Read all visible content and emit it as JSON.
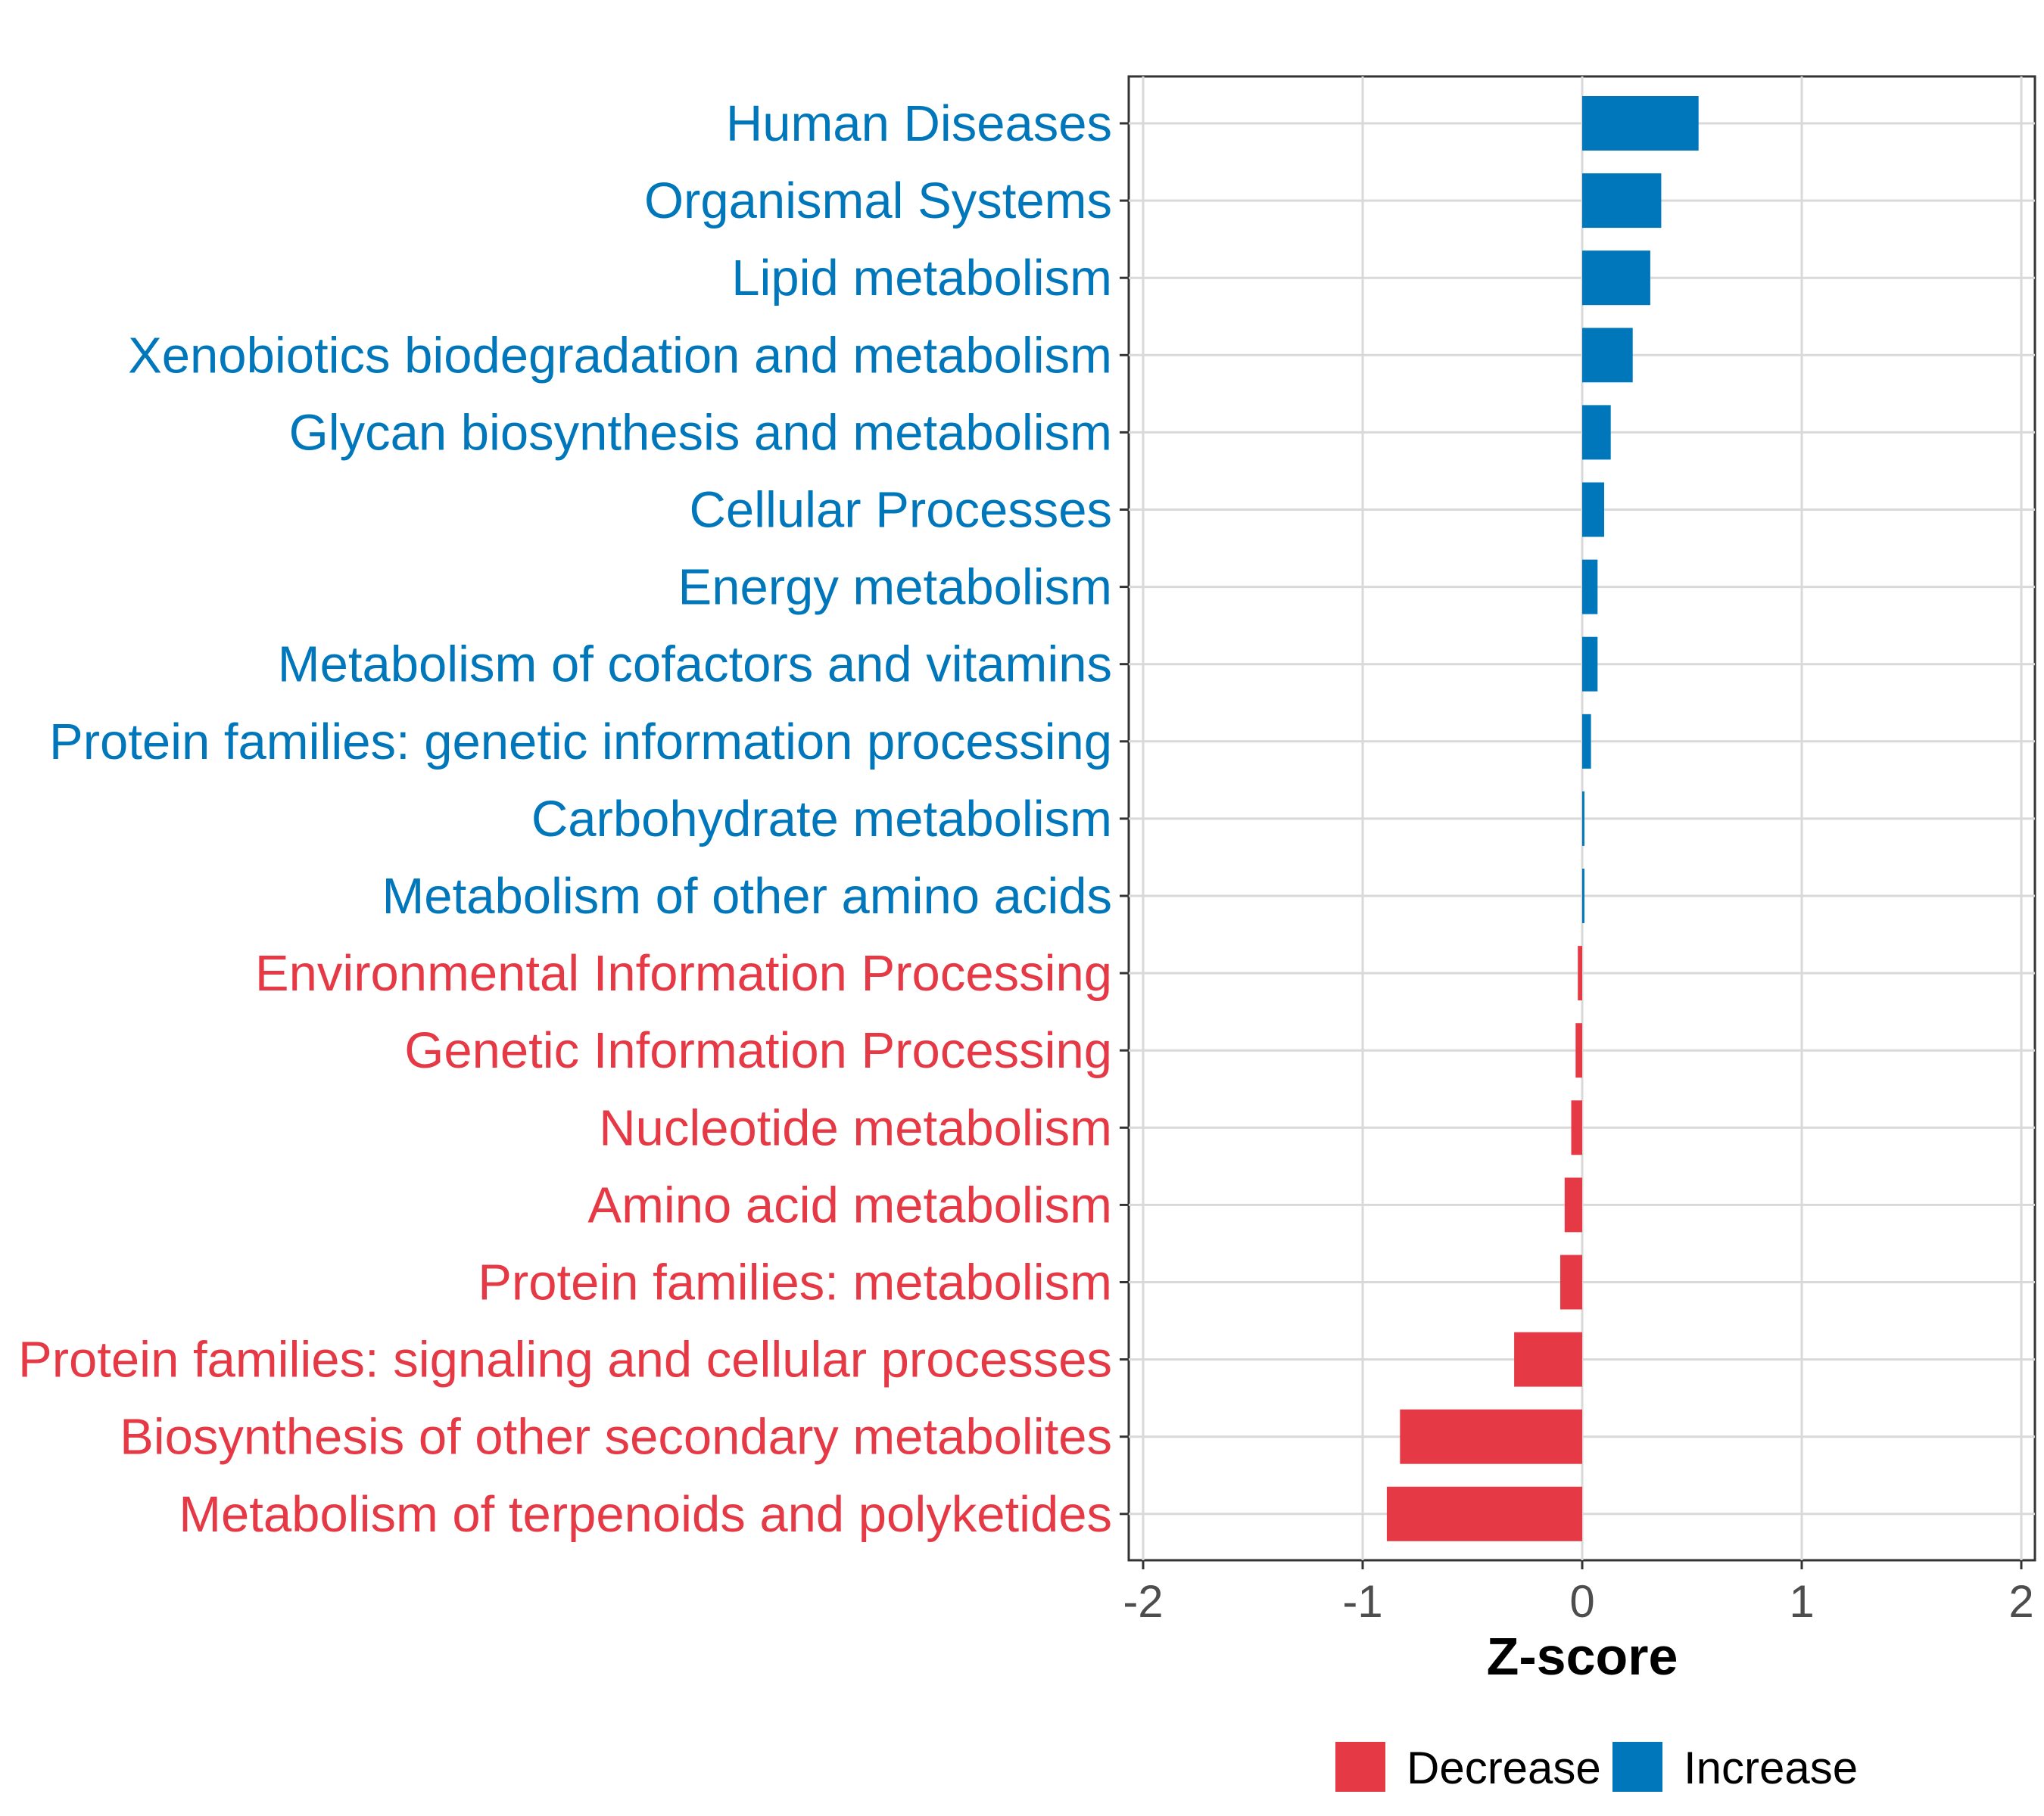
{
  "chart_data": {
    "type": "bar",
    "orientation": "horizontal",
    "categories": [
      "Human Diseases",
      "Organismal Systems",
      "Lipid metabolism",
      "Xenobiotics biodegradation and metabolism",
      "Glycan biosynthesis and metabolism",
      "Cellular Processes",
      "Energy metabolism",
      "Metabolism of cofactors and vitamins",
      "Protein families: genetic information processing",
      "Carbohydrate metabolism",
      "Metabolism of other amino acids",
      "Environmental Information Processing",
      "Genetic Information Processing",
      "Nucleotide metabolism",
      "Amino acid metabolism",
      "Protein families: metabolism",
      "Protein families: signaling and cellular processes",
      "Biosynthesis of other secondary metabolites",
      "Metabolism of terpenoids and polyketides"
    ],
    "values": [
      0.53,
      0.36,
      0.31,
      0.23,
      0.13,
      0.1,
      0.07,
      0.07,
      0.04,
      0.01,
      0.01,
      -0.02,
      -0.03,
      -0.05,
      -0.08,
      -0.1,
      -0.31,
      -0.83,
      -0.89
    ],
    "groups": [
      "Increase",
      "Increase",
      "Increase",
      "Increase",
      "Increase",
      "Increase",
      "Increase",
      "Increase",
      "Increase",
      "Increase",
      "Increase",
      "Decrease",
      "Decrease",
      "Decrease",
      "Decrease",
      "Decrease",
      "Decrease",
      "Decrease",
      "Decrease"
    ],
    "xlabel": "Z-score",
    "ylabel": "",
    "xlim": [
      -2.05,
      2.05
    ],
    "xticks": [
      -2,
      -1,
      0,
      1,
      2
    ],
    "xtick_labels": [
      "-2",
      "-1",
      "0",
      "1",
      "2"
    ],
    "grid": true,
    "legend": {
      "position": "bottom",
      "entries": [
        {
          "name": "Decrease",
          "color": "#E63946"
        },
        {
          "name": "Increase",
          "color": "#0077BB"
        }
      ]
    },
    "colors": {
      "Decrease": "#E63946",
      "Increase": "#0077BB"
    }
  }
}
